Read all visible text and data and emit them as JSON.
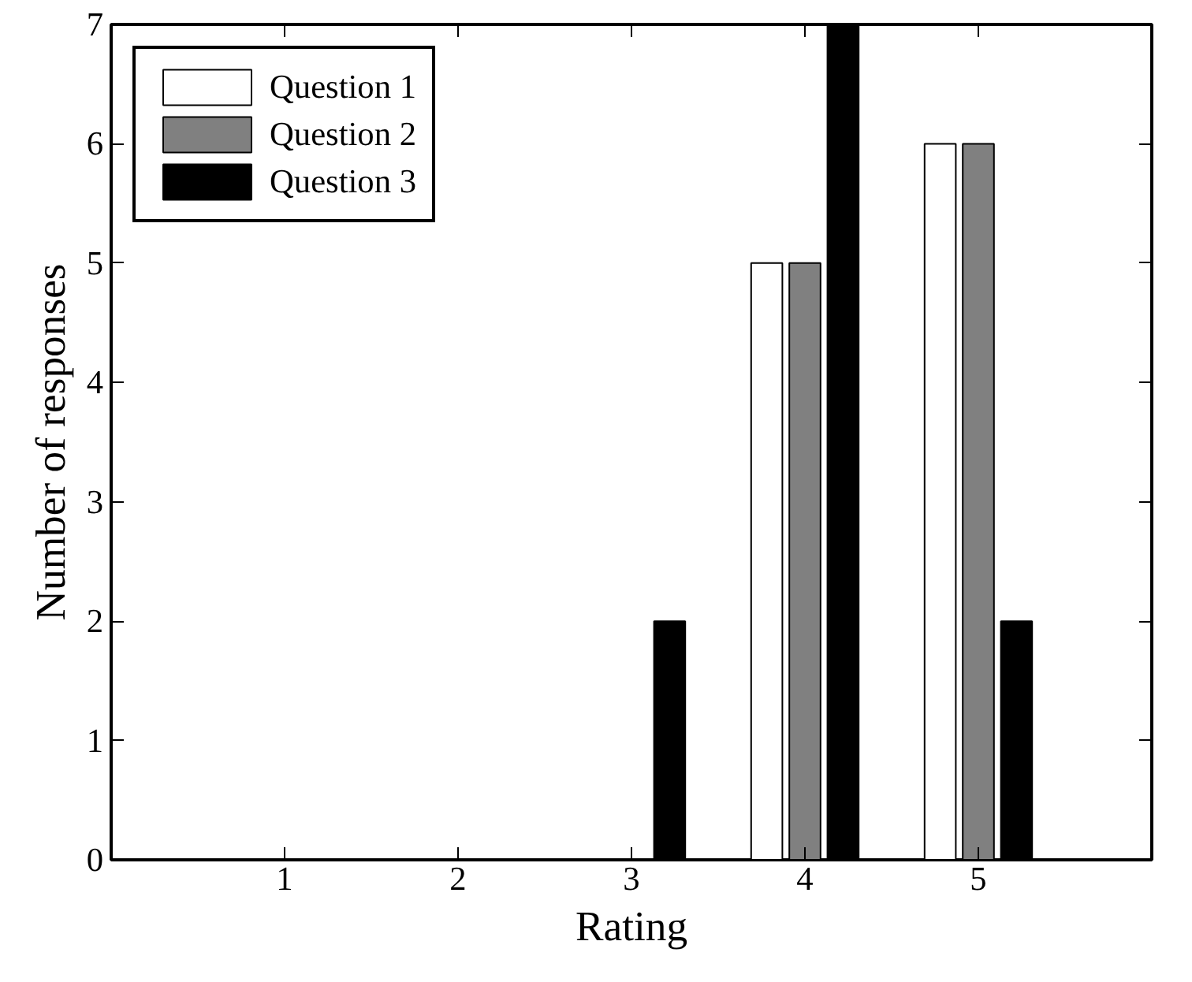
{
  "chart_data": {
    "type": "bar",
    "categories": [
      "1",
      "2",
      "3",
      "4",
      "5"
    ],
    "xlabel": "Rating",
    "ylabel": "Number of responses",
    "series": [
      {
        "name": "Question 1",
        "color": "#ffffff",
        "values": [
          null,
          null,
          null,
          5,
          6
        ]
      },
      {
        "name": "Question 2",
        "color": "#808080",
        "values": [
          null,
          null,
          null,
          5,
          6
        ]
      },
      {
        "name": "Question 3",
        "color": "#000000",
        "values": [
          null,
          null,
          2,
          7,
          2
        ]
      }
    ],
    "ylim": [
      0,
      7
    ],
    "yticks": [
      0,
      1,
      2,
      3,
      4,
      5,
      6,
      7
    ],
    "grid": false,
    "legend": "top left"
  }
}
